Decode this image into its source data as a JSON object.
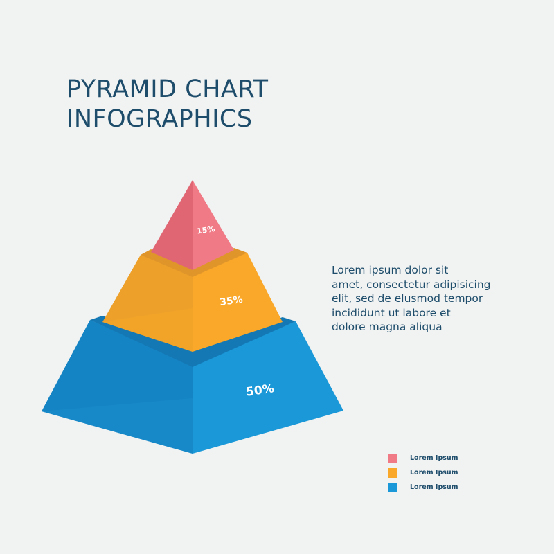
{
  "chart_data": {
    "type": "pyramid",
    "title": "PYRAMID CHART INFOGRAPHICS",
    "title_lines": [
      "PYRAMID CHART",
      "INFOGRAPHICS"
    ],
    "levels": [
      {
        "label": "15%",
        "value": 15,
        "color": "#f07a85",
        "legend": "Lorem Ipsum"
      },
      {
        "label": "35%",
        "value": 35,
        "color": "#f9a82a",
        "legend": "Lorem Ipsum"
      },
      {
        "label": "50%",
        "value": 50,
        "color": "#1a98d8",
        "legend": "Lorem Ipsum"
      }
    ],
    "legend_position": "bottom-right"
  },
  "description_lines": [
    "Lorem ipsum dolor sit",
    "amet, consectetur adipisicing",
    "elit, sed de elusmod tempor",
    "incididunt ut labore et",
    "dolore magna aliqua"
  ]
}
